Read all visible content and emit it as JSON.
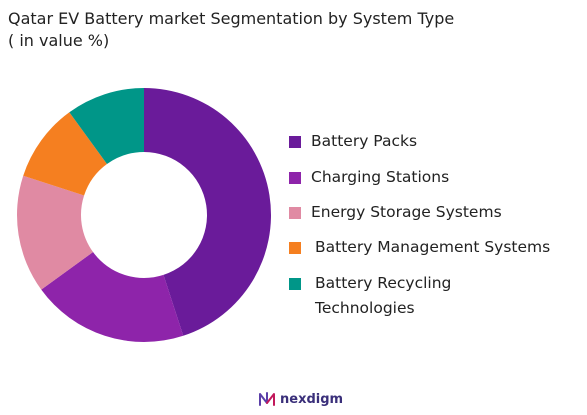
{
  "title_line1": "Qatar EV Battery market Segmentation by System Type",
  "title_line2": "( in value %)",
  "chart_data": {
    "type": "pie",
    "donut": true,
    "categories": [
      "Battery Packs",
      "Charging Stations",
      "Energy Storage Systems",
      "Battery Management Systems",
      "Battery Recycling Technologies"
    ],
    "legend_lines": [
      [
        "Battery Packs"
      ],
      [
        "Charging Stations"
      ],
      [
        "Energy Storage Systems"
      ],
      [
        "Battery Management Systems"
      ],
      [
        "Battery Recycling",
        "Technologies"
      ]
    ],
    "values": [
      45,
      20,
      15,
      10,
      10
    ],
    "colors": [
      "#6a1b9a",
      "#8e24aa",
      "#e08aa3",
      "#f57f20",
      "#009688"
    ],
    "legend_position": "right"
  },
  "logo_text": "nexdigm"
}
